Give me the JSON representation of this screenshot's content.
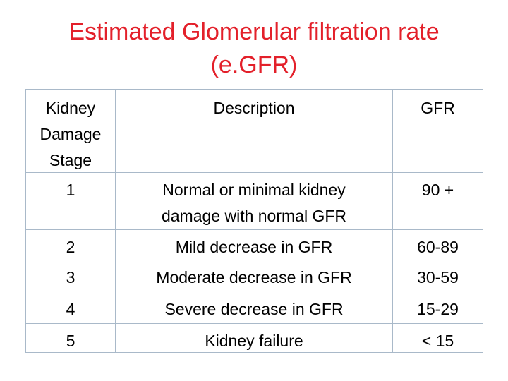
{
  "title": {
    "line1": "Estimated Glomerular filtration rate",
    "line2": "(e.GFR)"
  },
  "colors": {
    "title": "#e3202a",
    "grid": "#a9b9c9"
  },
  "table": {
    "headers": {
      "stage": [
        "Kidney",
        "Damage",
        "Stage"
      ],
      "description": "Description",
      "gfr": "GFR"
    },
    "rows": [
      {
        "stage": "1",
        "description": [
          "Normal or minimal kidney",
          "damage with normal GFR"
        ],
        "gfr": "90 +"
      },
      {
        "stage": "2",
        "description": [
          "Mild decrease in GFR"
        ],
        "gfr": "60-89"
      },
      {
        "stage": "3",
        "description": [
          "Moderate decrease in GFR"
        ],
        "gfr": "30-59"
      },
      {
        "stage": "4",
        "description": [
          "Severe decrease in GFR"
        ],
        "gfr": "15-29"
      },
      {
        "stage": "5",
        "description": [
          "Kidney failure"
        ],
        "gfr": "< 15"
      }
    ]
  }
}
